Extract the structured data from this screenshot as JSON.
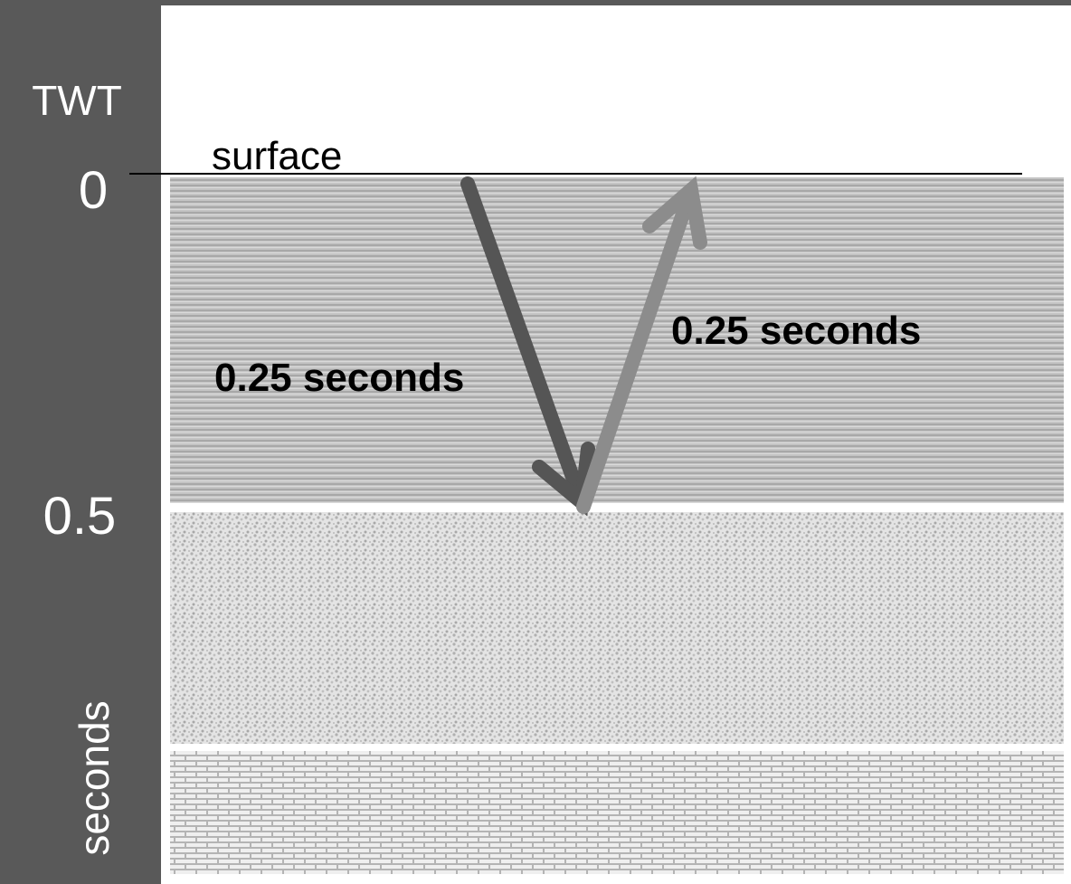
{
  "axis": {
    "title": "TWT",
    "ticks": [
      "0",
      "0.5"
    ],
    "unit": "seconds"
  },
  "labels": {
    "surface": "surface",
    "down_path": "0.25 seconds",
    "up_path": "0.25 seconds"
  }
}
